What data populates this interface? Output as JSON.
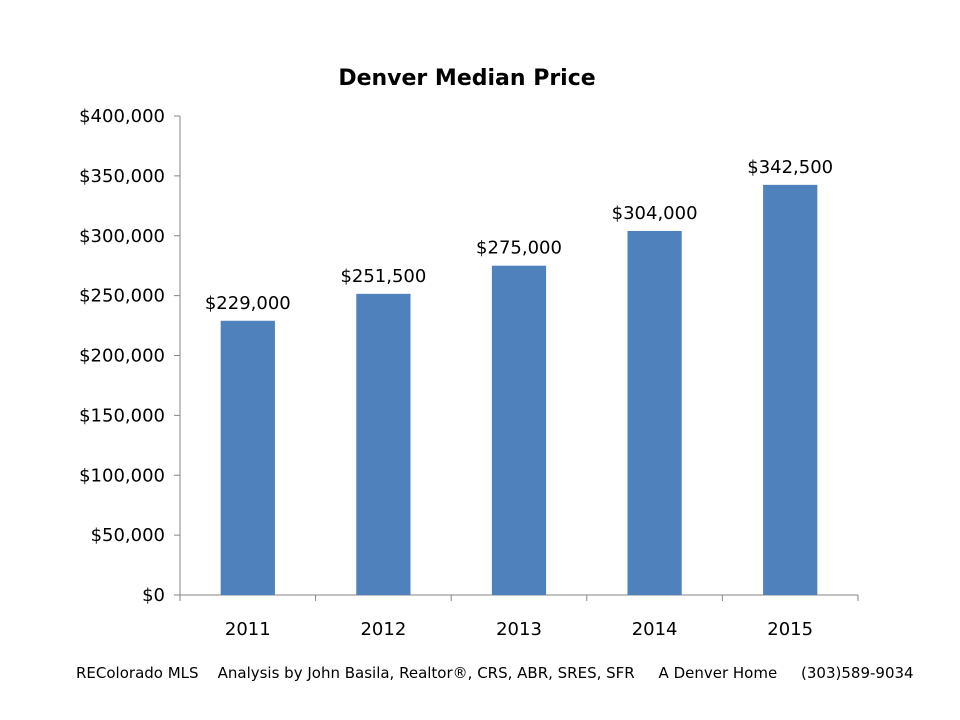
{
  "chart_data": {
    "type": "bar",
    "title": "Denver Median Price",
    "xlabel": "",
    "ylabel": "",
    "categories": [
      "2011",
      "2012",
      "2013",
      "2014",
      "2015"
    ],
    "values": [
      229000,
      251500,
      275000,
      304000,
      342500
    ],
    "data_labels": [
      "$229,000",
      "$251,500",
      "$275,000",
      "$304,000",
      "$342,500"
    ],
    "ylim": [
      0,
      400000
    ],
    "y_ticks": [
      0,
      50000,
      100000,
      150000,
      200000,
      250000,
      300000,
      350000,
      400000
    ],
    "y_tick_labels": [
      "$0",
      "$50,000",
      "$100,000",
      "$150,000",
      "$200,000",
      "$250,000",
      "$300,000",
      "$350,000",
      "$400,000"
    ],
    "grid": false,
    "legend": "none",
    "bar_color": "#4f81bd"
  },
  "footer": {
    "text": "REColorado MLS    Analysis by John Basila, Realtor®, CRS, ABR, SRES, SFR     A Denver Home     (303)589-9034"
  }
}
